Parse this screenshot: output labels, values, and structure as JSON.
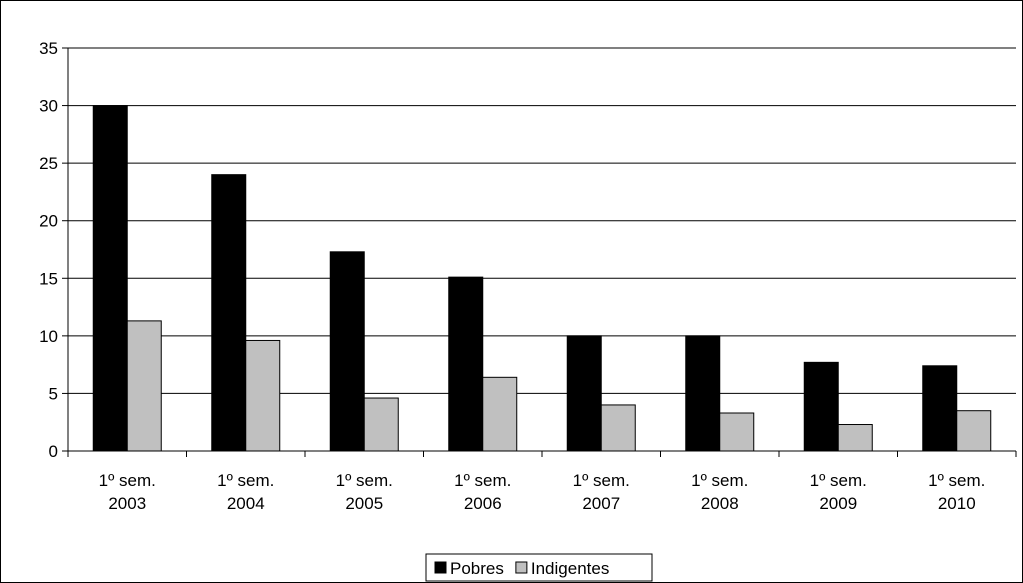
{
  "chart_data": {
    "type": "bar",
    "categories": [
      [
        "1º sem.",
        "2003"
      ],
      [
        "1º sem.",
        "2004"
      ],
      [
        "1º sem.",
        "2005"
      ],
      [
        "1º sem.",
        "2006"
      ],
      [
        "1º sem.",
        "2007"
      ],
      [
        "1º sem.",
        "2008"
      ],
      [
        "1º sem.",
        "2009"
      ],
      [
        "1º sem.",
        "2010"
      ]
    ],
    "series": [
      {
        "name": "Pobres",
        "color": "#000000",
        "values": [
          30.0,
          24.0,
          17.3,
          15.1,
          10.0,
          10.0,
          7.7,
          7.4
        ]
      },
      {
        "name": "Indigentes",
        "color": "#c0c0c0",
        "values": [
          11.3,
          9.6,
          4.6,
          6.4,
          4.0,
          3.3,
          2.3,
          3.5
        ]
      }
    ],
    "ylim": [
      0,
      35
    ],
    "yticks": [
      0,
      5,
      10,
      15,
      20,
      25,
      30,
      35
    ],
    "grid": true,
    "legend_position": "bottom-center"
  }
}
